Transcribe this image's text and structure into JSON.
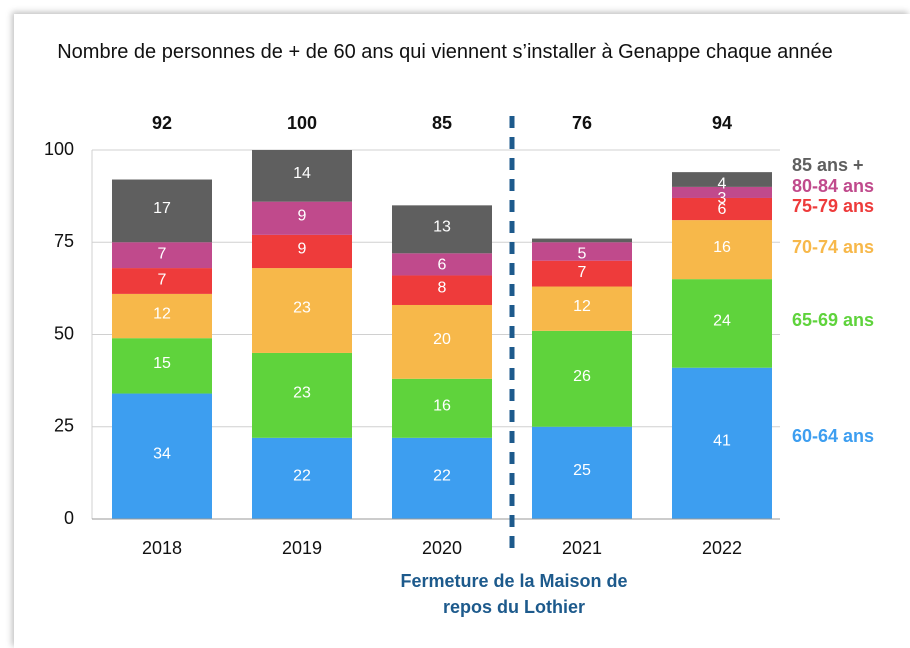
{
  "chart_data": {
    "type": "stacked_bar",
    "title": "Nombre de personnes de + de 60 ans qui viennent s’installer à Genappe chaque année",
    "categories": [
      "2018",
      "2019",
      "2020",
      "2021",
      "2022"
    ],
    "totals": [
      92,
      100,
      85,
      76,
      94
    ],
    "series": [
      {
        "name": "60-64 ans",
        "color": "#3d9ef0",
        "values": [
          34,
          22,
          22,
          25,
          41
        ]
      },
      {
        "name": "65-69 ans",
        "color": "#5fd33c",
        "values": [
          15,
          23,
          16,
          26,
          24
        ]
      },
      {
        "name": "70-74 ans",
        "color": "#f7b84a",
        "values": [
          12,
          23,
          20,
          12,
          16
        ]
      },
      {
        "name": "75-79 ans",
        "color": "#ee3b3b",
        "values": [
          7,
          9,
          8,
          7,
          6
        ]
      },
      {
        "name": "80-84 ans",
        "color": "#c04a8c",
        "values": [
          7,
          9,
          6,
          5,
          3
        ]
      },
      {
        "name": "85 ans +",
        "color": "#5f5f5f",
        "values": [
          17,
          14,
          13,
          1,
          4
        ],
        "value_labels": [
          "17",
          "14",
          "13",
          null,
          "4"
        ]
      }
    ],
    "ylim": [
      0,
      100
    ],
    "yticks": [
      0,
      25,
      50,
      75,
      100
    ],
    "grid": true,
    "annotation": "Fermeture de la Maison de repos du Lothier"
  }
}
